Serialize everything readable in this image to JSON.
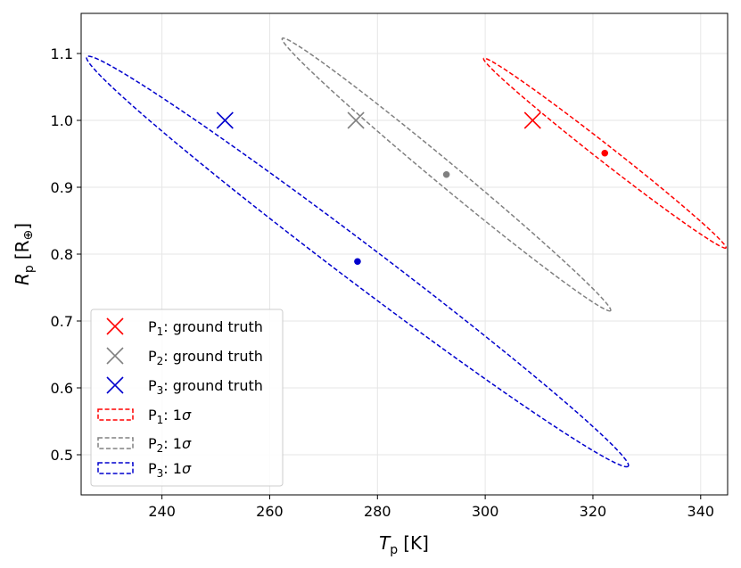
{
  "chart_data": {
    "type": "scatter",
    "title": "",
    "xlabel": {
      "symbol": "T",
      "subscript": "p",
      "unit": "[K]"
    },
    "ylabel": {
      "symbol": "R",
      "subscript": "p",
      "unit_open": "[R",
      "unit_sub": "⊕",
      "unit_close": "]"
    },
    "xlim": [
      225,
      345
    ],
    "ylim": [
      0.44,
      1.16
    ],
    "xticks": [
      240,
      260,
      280,
      300,
      320,
      340
    ],
    "yticks": [
      0.5,
      0.6,
      0.7,
      0.8,
      0.9,
      1.0,
      1.1
    ],
    "xtick_labels": [
      "240",
      "260",
      "280",
      "300",
      "320",
      "340"
    ],
    "ytick_labels": [
      "0.5",
      "0.6",
      "0.7",
      "0.8",
      "0.9",
      "1.0",
      "1.1"
    ],
    "grid": true,
    "legend_position": "lower-left",
    "series": [
      {
        "name": "P1",
        "color": "#ff0000",
        "ground_truth": {
          "x": 308.8,
          "y": 1.0
        },
        "estimate": {
          "x": 322.2,
          "y": 0.951
        },
        "ellipse_1sigma": {
          "cx": 322.2,
          "cy": 0.951,
          "rx": 22.5,
          "ry": 0.142,
          "correlation": -0.994
        }
      },
      {
        "name": "P2",
        "color": "#808080",
        "ground_truth": {
          "x": 276.0,
          "y": 1.0
        },
        "estimate": {
          "x": 292.8,
          "y": 0.919
        },
        "ellipse_1sigma": {
          "cx": 292.8,
          "cy": 0.919,
          "rx": 30.5,
          "ry": 0.204,
          "correlation": -0.994
        }
      },
      {
        "name": "P3",
        "color": "#0000cd",
        "ground_truth": {
          "x": 251.7,
          "y": 1.0
        },
        "estimate": {
          "x": 276.3,
          "y": 0.789
        },
        "ellipse_1sigma": {
          "cx": 276.3,
          "cy": 0.789,
          "rx": 50.3,
          "ry": 0.307,
          "correlation": -0.993
        }
      }
    ],
    "legend": [
      {
        "kind": "cross",
        "series": 0,
        "prefix": "P",
        "sub": "1",
        "suffix": ": ground truth"
      },
      {
        "kind": "cross",
        "series": 1,
        "prefix": "P",
        "sub": "2",
        "suffix": ": ground truth"
      },
      {
        "kind": "cross",
        "series": 2,
        "prefix": "P",
        "sub": "3",
        "suffix": ": ground truth"
      },
      {
        "kind": "ellipse",
        "series": 0,
        "prefix": "P",
        "sub": "1",
        "suffix": ": 1",
        "sigma": "σ"
      },
      {
        "kind": "ellipse",
        "series": 1,
        "prefix": "P",
        "sub": "2",
        "suffix": ": 1",
        "sigma": "σ"
      },
      {
        "kind": "ellipse",
        "series": 2,
        "prefix": "P",
        "sub": "3",
        "suffix": ": 1",
        "sigma": "σ"
      }
    ]
  }
}
